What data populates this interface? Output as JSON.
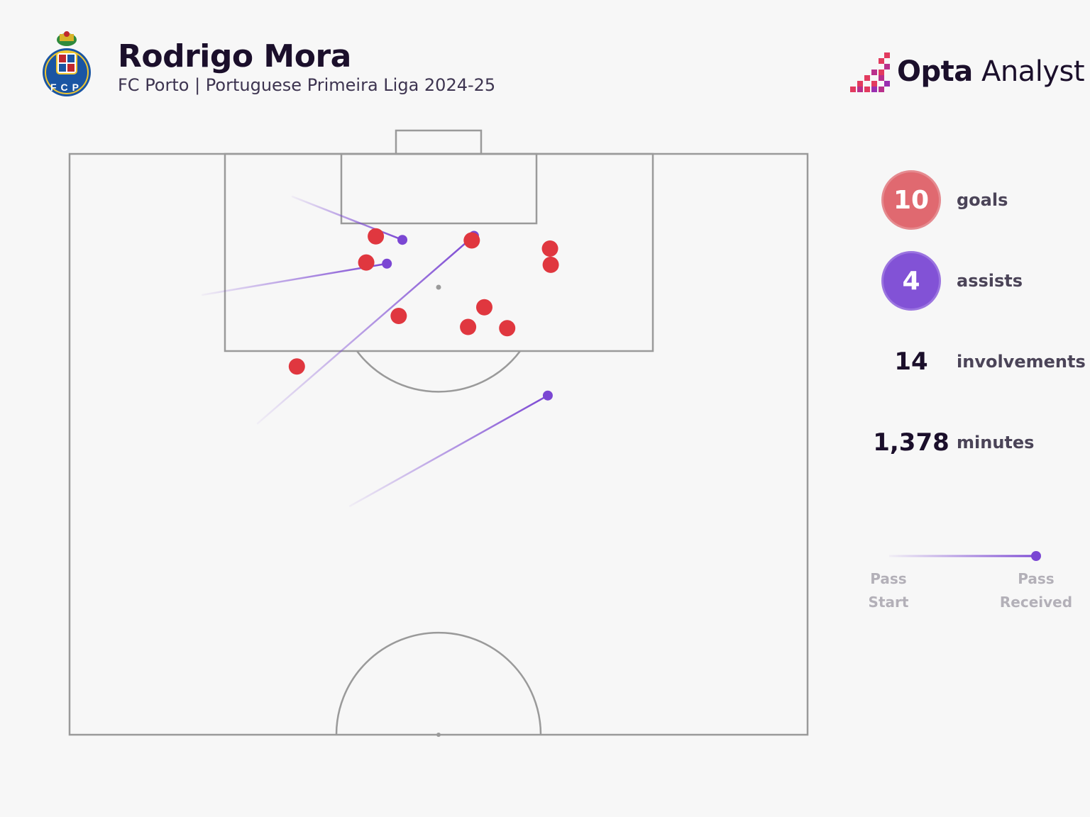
{
  "header": {
    "title": "Rodrigo Mora",
    "subtitle": "FC Porto | Portuguese Primeira Liga 2024-25",
    "club_crest_icon": "fc-porto-crest-icon",
    "crest_text": "FCP"
  },
  "brand": {
    "name_bold": "Opta",
    "name_light": " Analyst",
    "icon": "opta-bars-icon"
  },
  "stats": {
    "goals": {
      "value": "10",
      "label": "goals"
    },
    "assists": {
      "value": "4",
      "label": "assists"
    },
    "involvements": {
      "value": "14",
      "label": "involvements"
    },
    "minutes": {
      "value": "1,378",
      "label": "minutes"
    }
  },
  "legend": {
    "start_line1": "Pass",
    "start_line2": "Start",
    "end_line1": "Pass",
    "end_line2": "Received"
  },
  "colors": {
    "goal": "#e0373f",
    "assist": "#7b47d3",
    "pitch_lines": "#9a9a9a",
    "background": "#f7f7f7"
  },
  "chart_data": {
    "type": "scatter",
    "title": "Rodrigo Mora",
    "goals": [
      {
        "x": 41.5,
        "y": 14.2
      },
      {
        "x": 40.2,
        "y": 18.7
      },
      {
        "x": 44.6,
        "y": 27.9
      },
      {
        "x": 54.5,
        "y": 14.9
      },
      {
        "x": 65.1,
        "y": 16.3
      },
      {
        "x": 65.2,
        "y": 19.1
      },
      {
        "x": 56.2,
        "y": 26.4
      },
      {
        "x": 54.0,
        "y": 29.8
      },
      {
        "x": 59.3,
        "y": 30.0
      },
      {
        "x": 30.8,
        "y": 36.6
      }
    ],
    "assists": [
      {
        "start": {
          "x": 30.1,
          "y": 7.3
        },
        "end": {
          "x": 45.1,
          "y": 14.8
        }
      },
      {
        "start": {
          "x": 17.9,
          "y": 24.3
        },
        "end": {
          "x": 43.0,
          "y": 18.9
        }
      },
      {
        "start": {
          "x": 25.4,
          "y": 46.5
        },
        "end": {
          "x": 54.8,
          "y": 14.1
        }
      },
      {
        "start": {
          "x": 37.9,
          "y": 60.7
        },
        "end": {
          "x": 64.8,
          "y": 41.6
        }
      }
    ],
    "penalty_spot": {
      "x": 50,
      "y": 22
    }
  }
}
